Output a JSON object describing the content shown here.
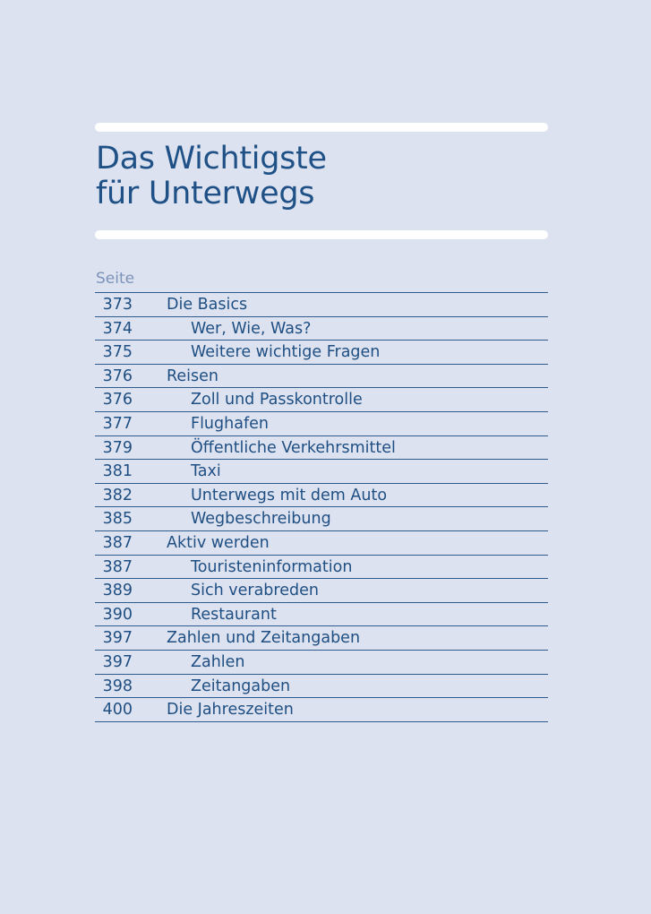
{
  "title": {
    "line1": "Das Wichtigste",
    "line2": "für Unterwegs"
  },
  "toc": {
    "column_label": "Seite",
    "entries": [
      {
        "page": "373",
        "text": "Die Basics",
        "level": 1
      },
      {
        "page": "374",
        "text": "Wer, Wie, Was?",
        "level": 2
      },
      {
        "page": "375",
        "text": "Weitere wichtige Fragen",
        "level": 2
      },
      {
        "page": "376",
        "text": "Reisen",
        "level": 1
      },
      {
        "page": "376",
        "text": "Zoll und Passkontrolle",
        "level": 2
      },
      {
        "page": "377",
        "text": "Flughafen",
        "level": 2
      },
      {
        "page": "379",
        "text": "Öffentliche Verkehrsmittel",
        "level": 2
      },
      {
        "page": "381",
        "text": "Taxi",
        "level": 2
      },
      {
        "page": "382",
        "text": "Unterwegs mit dem Auto",
        "level": 2
      },
      {
        "page": "385",
        "text": "Wegbeschreibung",
        "level": 2
      },
      {
        "page": "387",
        "text": "Aktiv werden",
        "level": 1
      },
      {
        "page": "387",
        "text": "Touristeninformation",
        "level": 2
      },
      {
        "page": "389",
        "text": "Sich verabreden",
        "level": 2
      },
      {
        "page": "390",
        "text": "Restaurant",
        "level": 2
      },
      {
        "page": "397",
        "text": "Zahlen und Zeitangaben",
        "level": 1
      },
      {
        "page": "397",
        "text": "Zahlen",
        "level": 2
      },
      {
        "page": "398",
        "text": "Zeitangaben",
        "level": 2
      },
      {
        "page": "400",
        "text": "Die Jahreszeiten",
        "level": 1
      }
    ]
  },
  "colors": {
    "background": "#dde2f0",
    "text": "#1f4f82",
    "label": "#7c93ba",
    "rule": "#ffffff",
    "line": "#2e5a8c"
  }
}
